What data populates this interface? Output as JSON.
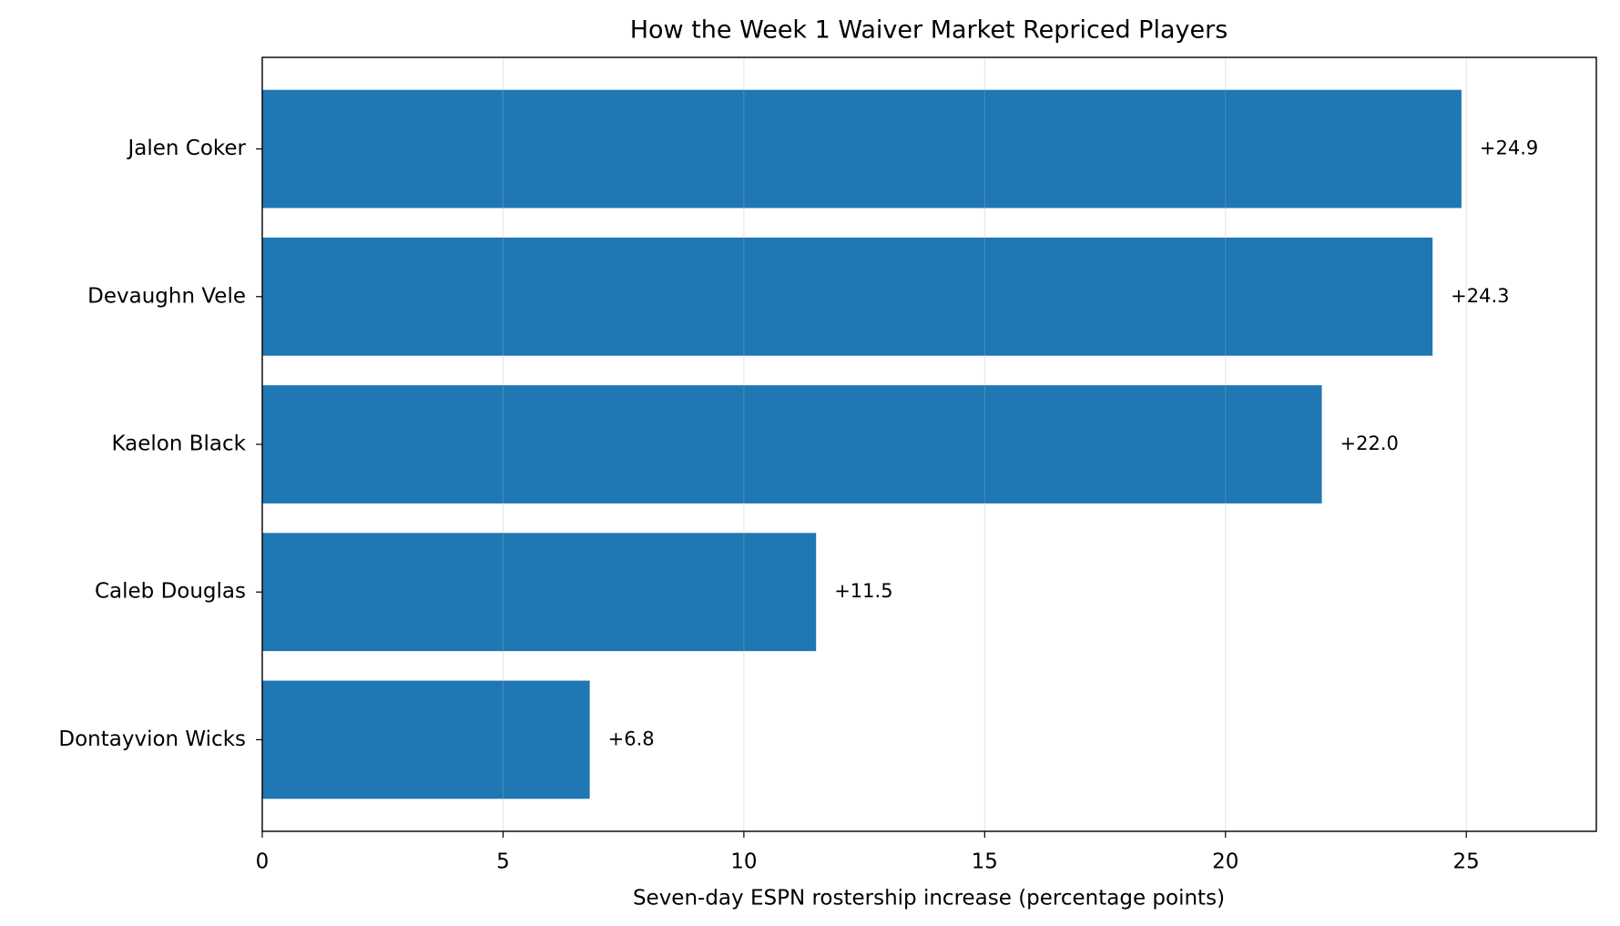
{
  "chart_data": {
    "type": "barh",
    "title": "How the Week 1 Waiver Market Repriced Players",
    "x_label": "Seven-day ESPN rostership increase (percentage points)",
    "categories": [
      "Jalen Coker",
      "Devaughn Vele",
      "Kaelon Black",
      "Caleb Douglas",
      "Dontayvion Wicks"
    ],
    "values": [
      24.9,
      24.3,
      22.0,
      11.5,
      6.8
    ],
    "value_labels": [
      "+24.9",
      "+24.3",
      "+22.0",
      "+11.5",
      "+6.8"
    ],
    "color": "#1f77b4",
    "xlim": [
      0,
      27.7
    ],
    "xticks": [
      0,
      5,
      10,
      15,
      20,
      25
    ],
    "grid": true
  }
}
